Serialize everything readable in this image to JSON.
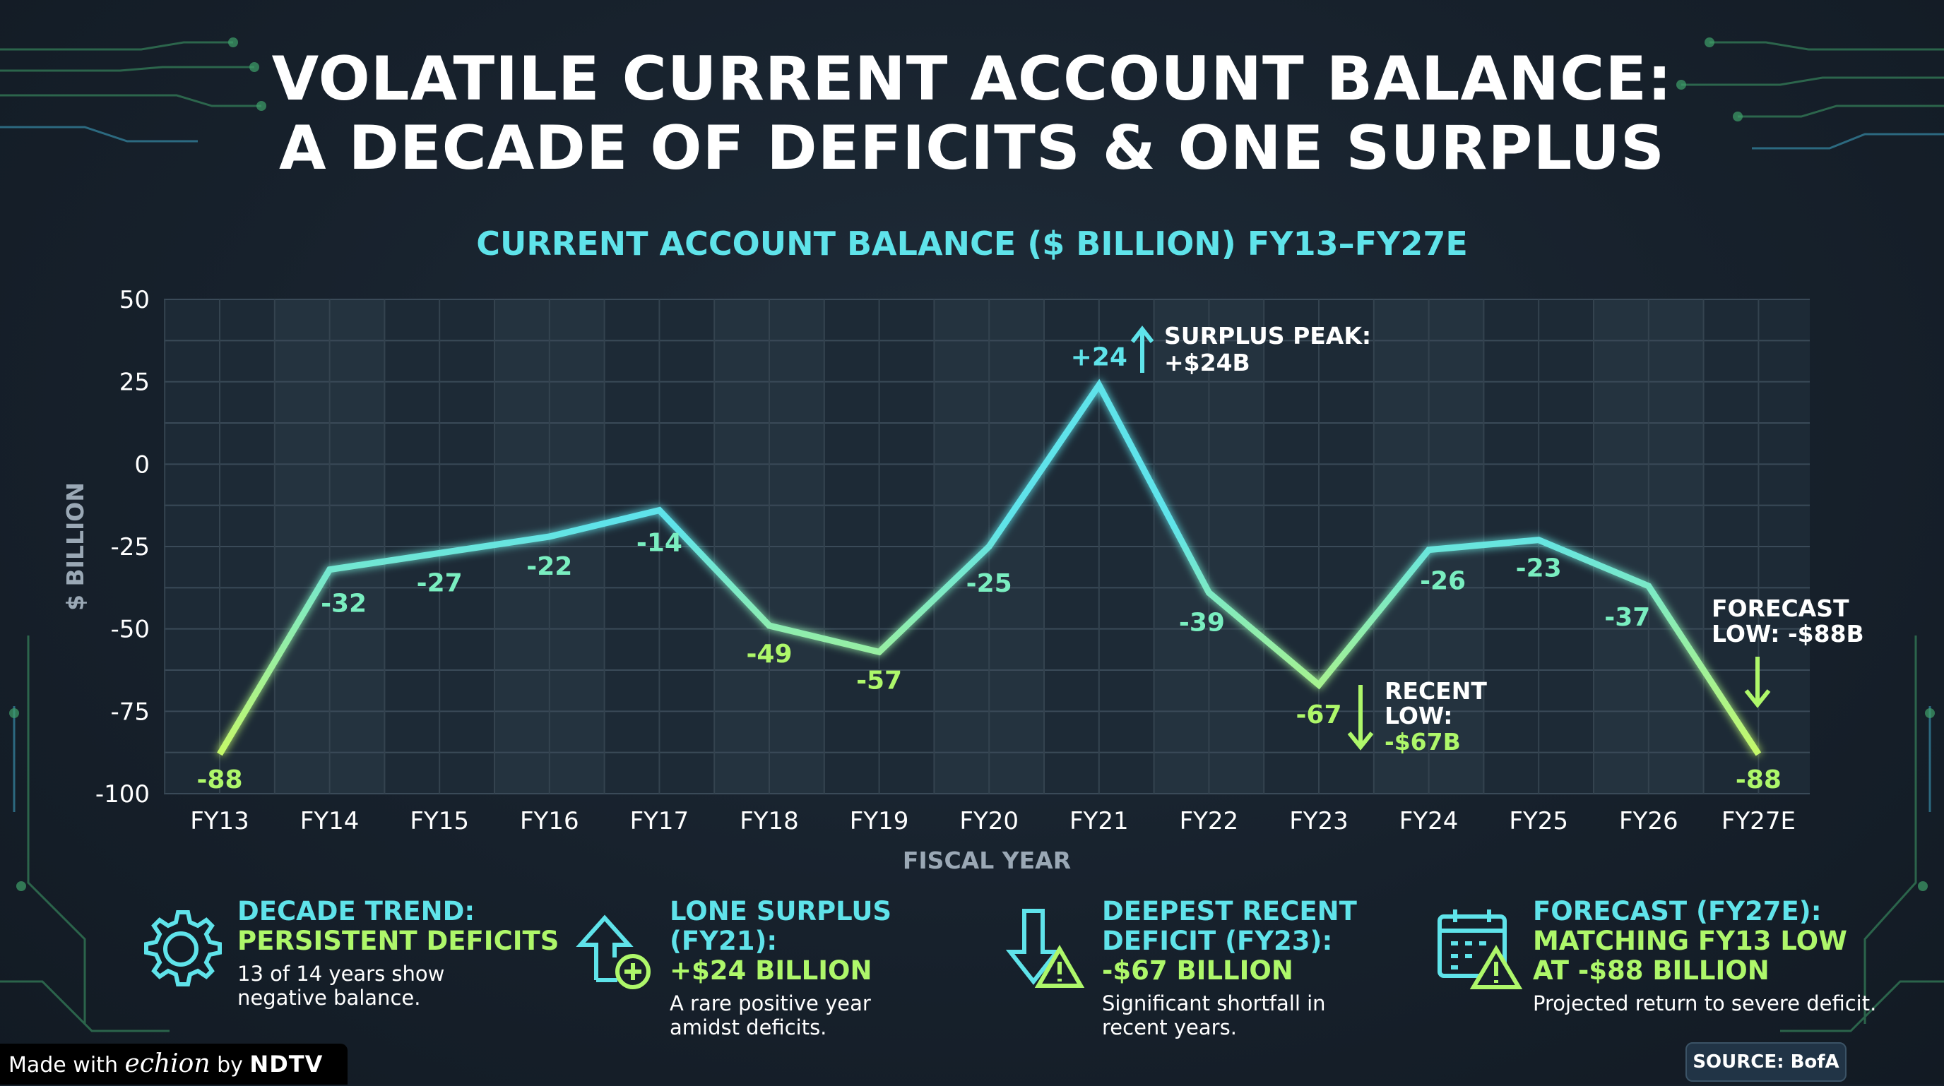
{
  "title_line1": "VOLATILE CURRENT ACCOUNT BALANCE:",
  "title_line2": "A DECADE OF DEFICITS & ONE SURPLUS",
  "chart_data": {
    "type": "line",
    "title": "CURRENT ACCOUNT BALANCE ($ BILLION) FY13–FY27E",
    "xlabel": "FISCAL YEAR",
    "ylabel": "$ BILLION",
    "categories": [
      "FY13",
      "FY14",
      "FY15",
      "FY16",
      "FY17",
      "FY18",
      "FY19",
      "FY20",
      "FY21",
      "FY22",
      "FY23",
      "FY24",
      "FY25",
      "FY26",
      "FY27E"
    ],
    "series": [
      {
        "values": [
          -88,
          -32,
          -27,
          -22,
          -14,
          -49,
          -57,
          -25,
          24,
          -39,
          -67,
          -26,
          -23,
          -37,
          -88
        ]
      }
    ],
    "data_labels": [
      "-88",
      "-32",
      "-27",
      "-22",
      "-14",
      "-49",
      "-57",
      "-25",
      "+24",
      "-39",
      "-67",
      "-26",
      "-23",
      "-37",
      "-88"
    ],
    "ylim": [
      -100,
      50
    ],
    "yticks": [
      50,
      25,
      0,
      -25,
      -50,
      -75,
      -100
    ],
    "grid": true,
    "annotations": [
      {
        "id": "peak",
        "lines": [
          "SURPLUS PEAK:",
          "+$24B"
        ],
        "target": "FY21",
        "arrow": "up"
      },
      {
        "id": "recent",
        "lines": [
          "RECENT",
          "LOW:",
          "-$67B"
        ],
        "target": "FY23",
        "arrow": "down"
      },
      {
        "id": "forecast",
        "lines": [
          "FORECAST",
          "LOW: -$88B"
        ],
        "target": "FY27E",
        "arrow": "down"
      }
    ],
    "colors": {
      "line_high": "#5fe3ea",
      "line_low": "#aef76a",
      "zero_line": "#7ef0f5"
    }
  },
  "cards": [
    {
      "h1": "DECADE TREND:",
      "h2": "PERSISTENT DEFICITS",
      "h3": "",
      "body1": "13 of 14 years show",
      "body2": "negative balance.",
      "icon": "gear-icon"
    },
    {
      "h1": "LONE SURPLUS (FY21):",
      "h2": "+$24 BILLION",
      "h3": "",
      "body1": "A rare positive year",
      "body2": "amidst deficits.",
      "icon": "house-plus-icon"
    },
    {
      "h1": "DEEPEST RECENT",
      "h2": "DEFICIT (FY23):",
      "h3": "-$67 BILLION",
      "body1": "Significant shortfall in",
      "body2": "recent years.",
      "icon": "arrow-down-warning-icon"
    },
    {
      "h1": "FORECAST (FY27E):",
      "h2": "MATCHING FY13 LOW",
      "h3": "AT -$88 BILLION",
      "body1": "Projected return to severe deficit.",
      "body2": "",
      "icon": "calendar-warning-icon"
    }
  ],
  "footer": {
    "made_prefix": "Made with ",
    "made_brand": "echion",
    "made_by": " by ",
    "made_org": "NDTV",
    "source": "SOURCE: BofA"
  }
}
